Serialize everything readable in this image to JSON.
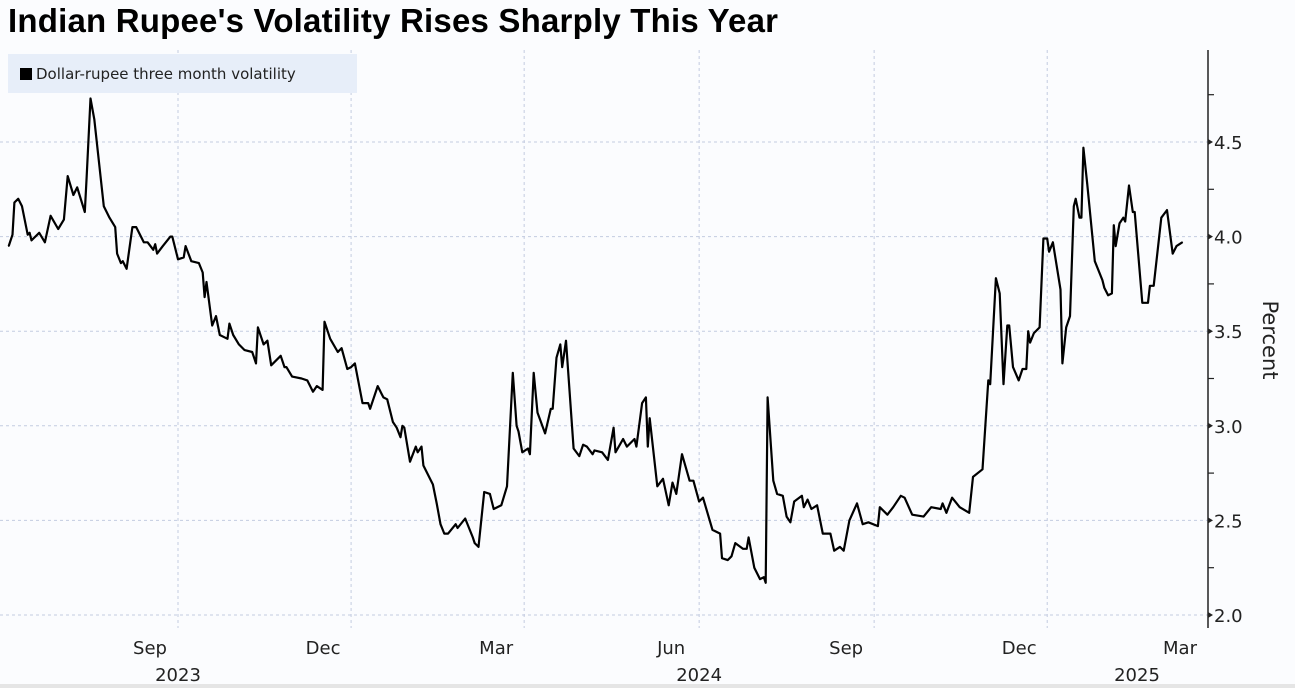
{
  "chart_data": {
    "type": "line",
    "title": "Indian Rupee's Volatility Rises Sharply This Year",
    "legend": [
      "Dollar-rupee three month volatility"
    ],
    "legend_placement": "top-left",
    "ylabel": "Percent",
    "xlabel": "",
    "ylim": [
      1.95,
      4.95
    ],
    "yticks": [
      "2.0",
      "2.5",
      "3.0",
      "3.5",
      "4.0",
      "4.5"
    ],
    "ytick_values": [
      2.0,
      2.5,
      3.0,
      3.5,
      4.0,
      4.5
    ],
    "x_unit": "days since 2023-09-01",
    "xticks": [
      {
        "day": 0,
        "month": "Sep",
        "year": "2023"
      },
      {
        "day": 91,
        "month": "Dec",
        "year": ""
      },
      {
        "day": 182,
        "month": "Mar",
        "year": ""
      },
      {
        "day": 274,
        "month": "Jun",
        "year": "2024"
      },
      {
        "day": 366,
        "month": "Sep",
        "year": ""
      },
      {
        "day": 457,
        "month": "Dec",
        "year": ""
      },
      {
        "day": 547,
        "month": "Mar",
        "year": "2025"
      }
    ],
    "grid": true,
    "color": "#000000",
    "series": [
      {
        "name": "Dollar-rupee three month volatility",
        "points": [
          [
            -89,
            3.95
          ],
          [
            -87,
            4.01
          ],
          [
            -86,
            4.18
          ],
          [
            -84,
            4.2
          ],
          [
            -82,
            4.16
          ],
          [
            -79,
            4.01
          ],
          [
            -78,
            4.02
          ],
          [
            -77,
            3.98
          ],
          [
            -73,
            4.02
          ],
          [
            -70,
            3.97
          ],
          [
            -67,
            4.11
          ],
          [
            -63,
            4.04
          ],
          [
            -60,
            4.09
          ],
          [
            -58,
            4.32
          ],
          [
            -55,
            4.22
          ],
          [
            -53,
            4.26
          ],
          [
            -49,
            4.13
          ],
          [
            -48,
            4.32
          ],
          [
            -46,
            4.73
          ],
          [
            -44,
            4.62
          ],
          [
            -39,
            4.16
          ],
          [
            -36,
            4.1
          ],
          [
            -33,
            4.05
          ],
          [
            -32,
            3.91
          ],
          [
            -30,
            3.86
          ],
          [
            -29,
            3.87
          ],
          [
            -27,
            3.83
          ],
          [
            -24,
            4.05
          ],
          [
            -22,
            4.05
          ],
          [
            -18,
            3.97
          ],
          [
            -16,
            3.97
          ],
          [
            -13,
            3.93
          ],
          [
            -12,
            3.96
          ],
          [
            -11,
            3.91
          ],
          [
            -8,
            3.95
          ],
          [
            -4,
            4.0
          ],
          [
            -3,
            4.0
          ],
          [
            0,
            3.88
          ],
          [
            3,
            3.89
          ],
          [
            4,
            3.95
          ],
          [
            7,
            3.87
          ],
          [
            11,
            3.86
          ],
          [
            13,
            3.81
          ],
          [
            14,
            3.68
          ],
          [
            15,
            3.76
          ],
          [
            18,
            3.53
          ],
          [
            20,
            3.58
          ],
          [
            22,
            3.48
          ],
          [
            26,
            3.46
          ],
          [
            27,
            3.54
          ],
          [
            29,
            3.48
          ],
          [
            32,
            3.43
          ],
          [
            35,
            3.4
          ],
          [
            39,
            3.39
          ],
          [
            41,
            3.33
          ],
          [
            42,
            3.52
          ],
          [
            45,
            3.43
          ],
          [
            47,
            3.45
          ],
          [
            49,
            3.32
          ],
          [
            54,
            3.37
          ],
          [
            56,
            3.31
          ],
          [
            57,
            3.31
          ],
          [
            60,
            3.26
          ],
          [
            65,
            3.25
          ],
          [
            68,
            3.24
          ],
          [
            71,
            3.18
          ],
          [
            73,
            3.21
          ],
          [
            76,
            3.19
          ],
          [
            77,
            3.55
          ],
          [
            80,
            3.46
          ],
          [
            84,
            3.39
          ],
          [
            86,
            3.41
          ],
          [
            89,
            3.3
          ],
          [
            91,
            3.31
          ],
          [
            93,
            3.33
          ],
          [
            97,
            3.12
          ],
          [
            100,
            3.12
          ],
          [
            101,
            3.09
          ],
          [
            105,
            3.21
          ],
          [
            108,
            3.15
          ],
          [
            110,
            3.14
          ],
          [
            113,
            3.02
          ],
          [
            115,
            2.99
          ],
          [
            117,
            2.94
          ],
          [
            118,
            3.0
          ],
          [
            119,
            2.99
          ],
          [
            122,
            2.81
          ],
          [
            125,
            2.89
          ],
          [
            126,
            2.86
          ],
          [
            128,
            2.89
          ],
          [
            129,
            2.79
          ],
          [
            134,
            2.69
          ],
          [
            136,
            2.59
          ],
          [
            138,
            2.48
          ],
          [
            140,
            2.43
          ],
          [
            142,
            2.43
          ],
          [
            146,
            2.48
          ],
          [
            147,
            2.46
          ],
          [
            151,
            2.51
          ],
          [
            155,
            2.41
          ],
          [
            156,
            2.38
          ],
          [
            158,
            2.36
          ],
          [
            161,
            2.65
          ],
          [
            164,
            2.64
          ],
          [
            166,
            2.56
          ],
          [
            170,
            2.58
          ],
          [
            173,
            2.68
          ],
          [
            176,
            3.28
          ],
          [
            178,
            3.0
          ],
          [
            179,
            2.97
          ],
          [
            181,
            2.86
          ],
          [
            184,
            2.88
          ],
          [
            185,
            2.85
          ],
          [
            187,
            3.28
          ],
          [
            189,
            3.07
          ],
          [
            193,
            2.96
          ],
          [
            196,
            3.09
          ],
          [
            197,
            3.09
          ],
          [
            199,
            3.36
          ],
          [
            201,
            3.43
          ],
          [
            202,
            3.31
          ],
          [
            204,
            3.45
          ],
          [
            208,
            2.88
          ],
          [
            211,
            2.84
          ],
          [
            213,
            2.9
          ],
          [
            215,
            2.89
          ],
          [
            218,
            2.85
          ],
          [
            219,
            2.87
          ],
          [
            223,
            2.86
          ],
          [
            226,
            2.82
          ],
          [
            229,
            2.99
          ],
          [
            230,
            2.86
          ],
          [
            234,
            2.93
          ],
          [
            236,
            2.89
          ],
          [
            240,
            2.93
          ],
          [
            241,
            2.89
          ],
          [
            244,
            3.12
          ],
          [
            246,
            3.15
          ],
          [
            247,
            2.89
          ],
          [
            248,
            3.04
          ],
          [
            252,
            2.68
          ],
          [
            255,
            2.72
          ],
          [
            258,
            2.58
          ],
          [
            260,
            2.7
          ],
          [
            262,
            2.64
          ],
          [
            265,
            2.85
          ],
          [
            267,
            2.78
          ],
          [
            269,
            2.71
          ],
          [
            271,
            2.71
          ],
          [
            274,
            2.6
          ],
          [
            276,
            2.62
          ],
          [
            281,
            2.45
          ],
          [
            285,
            2.43
          ],
          [
            286,
            2.3
          ],
          [
            289,
            2.29
          ],
          [
            291,
            2.31
          ],
          [
            293,
            2.38
          ],
          [
            297,
            2.35
          ],
          [
            299,
            2.35
          ],
          [
            300,
            2.41
          ],
          [
            303,
            2.25
          ],
          [
            306,
            2.19
          ],
          [
            308,
            2.2
          ],
          [
            309,
            2.17
          ],
          [
            310,
            3.15
          ],
          [
            313,
            2.71
          ],
          [
            315,
            2.64
          ],
          [
            318,
            2.63
          ],
          [
            320,
            2.52
          ],
          [
            322,
            2.49
          ],
          [
            324,
            2.6
          ],
          [
            328,
            2.63
          ],
          [
            329,
            2.57
          ],
          [
            331,
            2.61
          ],
          [
            333,
            2.56
          ],
          [
            336,
            2.58
          ],
          [
            339,
            2.43
          ],
          [
            343,
            2.43
          ],
          [
            345,
            2.34
          ],
          [
            348,
            2.36
          ],
          [
            350,
            2.34
          ],
          [
            353,
            2.5
          ],
          [
            357,
            2.59
          ],
          [
            360,
            2.48
          ],
          [
            363,
            2.49
          ],
          [
            368,
            2.47
          ],
          [
            369,
            2.57
          ],
          [
            373,
            2.53
          ],
          [
            376,
            2.57
          ],
          [
            380,
            2.63
          ],
          [
            382,
            2.62
          ],
          [
            386,
            2.53
          ],
          [
            392,
            2.52
          ],
          [
            396,
            2.57
          ],
          [
            401,
            2.56
          ],
          [
            402,
            2.59
          ],
          [
            404,
            2.54
          ],
          [
            407,
            2.62
          ],
          [
            411,
            2.57
          ],
          [
            416,
            2.54
          ],
          [
            418,
            2.73
          ],
          [
            423,
            2.77
          ],
          [
            426,
            3.24
          ],
          [
            427,
            3.22
          ],
          [
            430,
            3.78
          ],
          [
            432,
            3.7
          ],
          [
            434,
            3.22
          ],
          [
            436,
            3.53
          ],
          [
            437,
            3.53
          ],
          [
            439,
            3.31
          ],
          [
            442,
            3.24
          ],
          [
            444,
            3.3
          ],
          [
            446,
            3.3
          ],
          [
            447,
            3.5
          ],
          [
            448,
            3.44
          ],
          [
            450,
            3.49
          ],
          [
            453,
            3.52
          ],
          [
            455,
            3.99
          ],
          [
            457,
            3.99
          ],
          [
            458,
            3.92
          ],
          [
            460,
            3.97
          ],
          [
            464,
            3.72
          ],
          [
            465,
            3.33
          ],
          [
            467,
            3.52
          ],
          [
            469,
            3.58
          ],
          [
            471,
            4.16
          ],
          [
            472,
            4.2
          ],
          [
            474,
            4.1
          ],
          [
            475,
            4.1
          ],
          [
            476,
            4.47
          ],
          [
            478,
            4.28
          ],
          [
            482,
            3.87
          ],
          [
            486,
            3.77
          ],
          [
            487,
            3.73
          ],
          [
            489,
            3.69
          ],
          [
            491,
            3.7
          ],
          [
            492,
            4.06
          ],
          [
            493,
            3.95
          ],
          [
            495,
            4.07
          ],
          [
            497,
            4.1
          ],
          [
            498,
            4.08
          ],
          [
            500,
            4.27
          ],
          [
            502,
            4.13
          ],
          [
            503,
            4.13
          ],
          [
            507,
            3.65
          ],
          [
            510,
            3.65
          ],
          [
            511,
            3.74
          ],
          [
            513,
            3.74
          ],
          [
            517,
            4.1
          ],
          [
            520,
            4.14
          ],
          [
            523,
            3.91
          ],
          [
            525,
            3.95
          ],
          [
            528,
            3.97
          ]
        ]
      }
    ]
  }
}
